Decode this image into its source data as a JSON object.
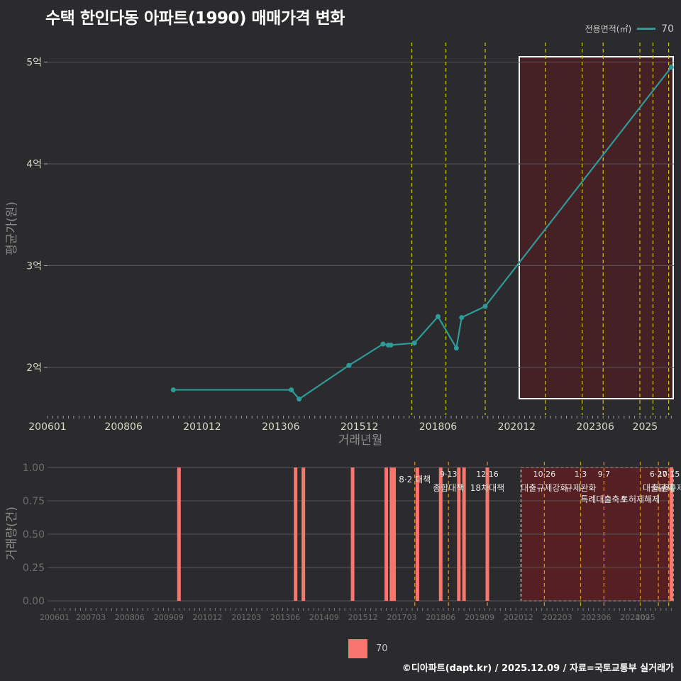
{
  "title": "수택 한인다동 아파트(1990) 매매가격 변화",
  "credit": "©디아파트(dapt.kr) / 2025.12.09 / 자료=국토교통부 실거래가",
  "legend_top": {
    "title": "전용면적(㎡)",
    "value": "70"
  },
  "legend_bottom": {
    "value": "70"
  },
  "colors": {
    "line": "#2e9b98",
    "bar": "#f8766d",
    "policy": "#d4c21a",
    "highlight": "#4a1f24"
  },
  "chart_data": [
    {
      "type": "line",
      "title": "수택 한인다동 아파트(1990) 매매가격 변화",
      "xlabel": "거래년월",
      "ylabel": "평균가(원)",
      "xlim": [
        "2006-01",
        "2025-12"
      ],
      "ylim": [
        15500,
        51500
      ],
      "xticks": [
        "200601",
        "200806",
        "201012",
        "201306",
        "201512",
        "201806",
        "202012",
        "202306",
        "2025"
      ],
      "yticks": [
        {
          "value": 20000,
          "label": "2억"
        },
        {
          "value": 30000,
          "label": "3억"
        },
        {
          "value": 40000,
          "label": "4억"
        },
        {
          "value": 50000,
          "label": "5억"
        }
      ],
      "series": [
        {
          "name": "70",
          "x": [
            "2010-01",
            "2013-10",
            "2014-01",
            "2015-08",
            "2016-09",
            "2016-11",
            "2016-12",
            "2017-09",
            "2018-06",
            "2019-01",
            "2019-03",
            "2019-12",
            "2025-11"
          ],
          "y": [
            17800,
            17800,
            16900,
            20200,
            22300,
            22200,
            22200,
            22400,
            25000,
            21900,
            24900,
            26000,
            49500
          ]
        }
      ],
      "policy_lines": [
        "2017-08",
        "2018-09",
        "2019-12",
        "2021-11",
        "2023-01",
        "2023-09",
        "2024-11",
        "2025-04",
        "2025-10"
      ],
      "highlight_range": [
        "2021-01",
        "2025-12"
      ]
    },
    {
      "type": "bar",
      "xlabel": "",
      "ylabel": "거래량(건)",
      "ylim": [
        0,
        1
      ],
      "xticks": [
        "200601",
        "200703",
        "200806",
        "200909",
        "201012",
        "201203",
        "201306",
        "201409",
        "201512",
        "201703",
        "201806",
        "201909",
        "202012",
        "202203",
        "202306",
        "202409",
        "2025"
      ],
      "yticks": [
        "0.00",
        "0.25",
        "0.50",
        "0.75",
        "1.00"
      ],
      "series": [
        {
          "name": "70",
          "x": [
            "2010-01",
            "2013-10",
            "2014-01",
            "2015-08",
            "2016-09",
            "2016-11",
            "2016-12",
            "2017-09",
            "2018-06",
            "2019-01",
            "2019-03",
            "2019-12",
            "2025-11"
          ],
          "values": [
            1,
            1,
            1,
            1,
            1,
            1,
            1,
            1,
            1,
            1,
            1,
            1,
            1
          ]
        }
      ],
      "policy_lines": [
        "2017-08",
        "2018-09",
        "2019-12",
        "2021-10",
        "2022-12",
        "2023-09",
        "2024-11",
        "2025-06",
        "2025-10"
      ],
      "annotations": [
        {
          "x": "2017-08",
          "date": "",
          "text": "8·2 대책"
        },
        {
          "x": "2018-09",
          "date": "9·13",
          "text": "종합대책"
        },
        {
          "x": "2019-12",
          "date": "12·16",
          "text": "18차대책"
        },
        {
          "x": "2021-10",
          "date": "10·26",
          "text": "대출규제강화"
        },
        {
          "x": "2022-12",
          "date": "1·3",
          "text": "규제완화"
        },
        {
          "x": "2023-09",
          "date": "9·7",
          "text": "특례대출축소"
        },
        {
          "x": "2024-11",
          "date": "",
          "text": "토허제해제"
        },
        {
          "x": "2025-06",
          "date": "6·27",
          "text": "대출규제"
        },
        {
          "x": "2025-10",
          "date": "10·15",
          "text": "대출규제"
        }
      ],
      "highlight_range": [
        "2021-01",
        "2025-12"
      ]
    }
  ]
}
